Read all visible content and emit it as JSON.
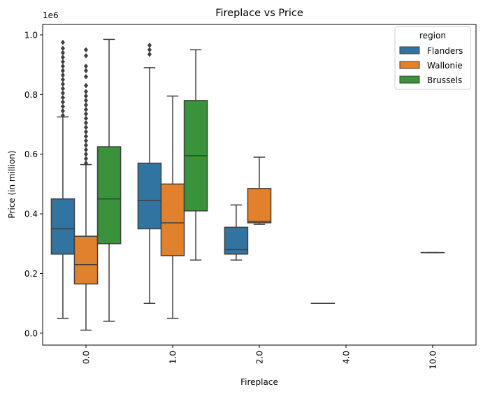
{
  "chart_data": {
    "type": "boxplot",
    "title": "Fireplace vs Price",
    "xlabel": "Fireplace",
    "ylabel": "Price (in million)",
    "y_offset_label": "1e6",
    "ylim": [
      -0.04,
      1.035
    ],
    "y_ticks": [
      "0.0",
      "0.2",
      "0.4",
      "0.6",
      "0.8",
      "1.0"
    ],
    "categories": [
      "0.0",
      "1.0",
      "2.0",
      "4.0",
      "10.0"
    ],
    "legend": {
      "title": "region",
      "position": "top-right",
      "entries": [
        {
          "name": "Flanders",
          "color": "#3274a1"
        },
        {
          "name": "Wallonie",
          "color": "#e1812c"
        },
        {
          "name": "Brussels",
          "color": "#3a923a"
        }
      ]
    },
    "series": [
      {
        "name": "Flanders",
        "color": "#3274a1",
        "boxes": [
          {
            "category": "0.0",
            "whislo": 0.05,
            "q1": 0.265,
            "med": 0.35,
            "q3": 0.45,
            "whishi": 0.725,
            "fliers": [
              0.73,
              0.745,
              0.76,
              0.775,
              0.79,
              0.805,
              0.82,
              0.835,
              0.85,
              0.865,
              0.88,
              0.895,
              0.91,
              0.925,
              0.94,
              0.955,
              0.975
            ]
          },
          {
            "category": "1.0",
            "whislo": 0.1,
            "q1": 0.35,
            "med": 0.445,
            "q3": 0.57,
            "whishi": 0.89,
            "fliers": [
              0.935,
              0.95,
              0.965
            ]
          },
          {
            "category": "2.0",
            "whislo": 0.245,
            "q1": 0.265,
            "med": 0.28,
            "q3": 0.355,
            "whishi": 0.43,
            "fliers": []
          },
          {
            "category": "4.0",
            "whislo": 0.1,
            "q1": 0.1,
            "med": 0.1,
            "q3": 0.1,
            "whishi": 0.1,
            "fliers": []
          }
        ]
      },
      {
        "name": "Wallonie",
        "color": "#e1812c",
        "boxes": [
          {
            "category": "0.0",
            "whislo": 0.01,
            "q1": 0.165,
            "med": 0.23,
            "q3": 0.325,
            "whishi": 0.565,
            "fliers": [
              0.57,
              0.585,
              0.6,
              0.615,
              0.63,
              0.645,
              0.66,
              0.675,
              0.69,
              0.705,
              0.72,
              0.735,
              0.75,
              0.765,
              0.78,
              0.795,
              0.81,
              0.83,
              0.86,
              0.88,
              0.895,
              0.93,
              0.95
            ]
          },
          {
            "category": "1.0",
            "whislo": 0.05,
            "q1": 0.26,
            "med": 0.37,
            "q3": 0.5,
            "whishi": 0.795,
            "fliers": []
          },
          {
            "category": "2.0",
            "whislo": 0.365,
            "q1": 0.37,
            "med": 0.375,
            "q3": 0.485,
            "whishi": 0.59,
            "fliers": []
          },
          {
            "category": "10.0",
            "whislo": 0.27,
            "q1": 0.27,
            "med": 0.27,
            "q3": 0.27,
            "whishi": 0.27,
            "fliers": []
          }
        ]
      },
      {
        "name": "Brussels",
        "color": "#3a923a",
        "boxes": [
          {
            "category": "0.0",
            "whislo": 0.04,
            "q1": 0.3,
            "med": 0.45,
            "q3": 0.625,
            "whishi": 0.985,
            "fliers": []
          },
          {
            "category": "1.0",
            "whislo": 0.245,
            "q1": 0.41,
            "med": 0.595,
            "q3": 0.78,
            "whishi": 0.95,
            "fliers": []
          }
        ]
      }
    ],
    "grid": false
  }
}
